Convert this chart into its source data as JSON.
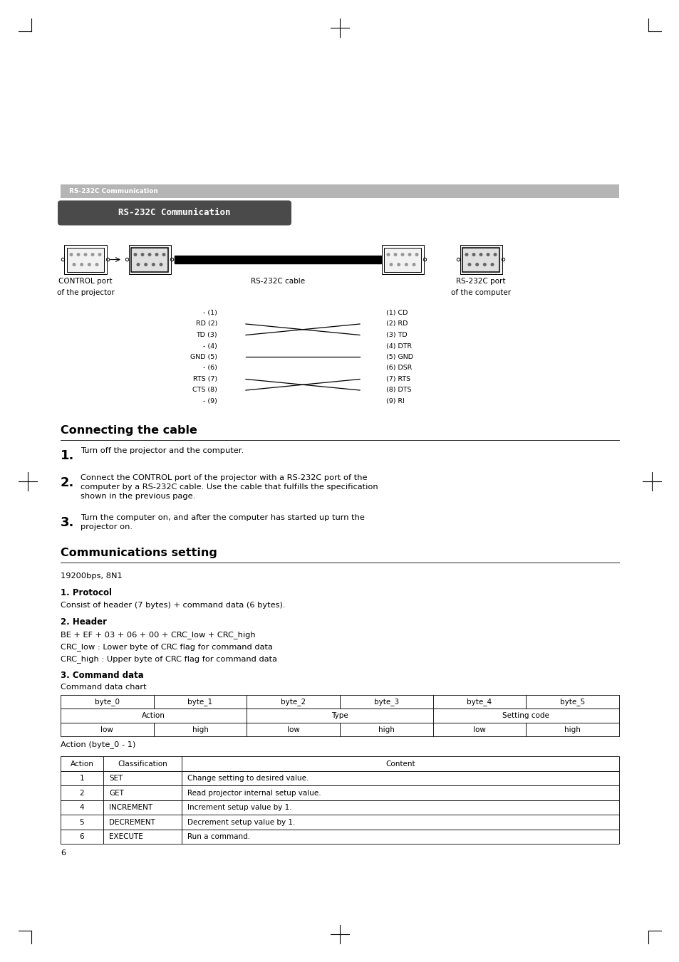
{
  "bg_color": "#ffffff",
  "page_width": 9.54,
  "page_height": 13.51,
  "header_bar_text": "RS-232C Communication",
  "title_box_text": "RS-232C Communication",
  "section1_title": "Connecting the cable",
  "section2_title": "Communications setting",
  "baud_rate": "19200bps, 8N1",
  "protocol_title": "1. Protocol",
  "protocol_text": "Consist of header (7 bytes) + command data (6 bytes).",
  "header_title": "2. Header",
  "header_text1": "BE + EF + 03 + 06 + 00 + CRC_low + CRC_high",
  "header_text2": "CRC_low : Lower byte of CRC flag for command data",
  "header_text3": "CRC_high : Upper byte of CRC flag for command data",
  "cmd_data_title": "3. Command data",
  "cmd_data_subtitle": "Command data chart",
  "action_table_label": "Action (byte_0 - 1)",
  "step1": "Turn off the projector and the computer.",
  "step2_line1": "Connect the CONTROL port of the projector with a RS-232C port of the",
  "step2_line2": "computer by a RS-232C cable. Use the cable that fulfills the specification",
  "step2_line3": "shown in the previous page.",
  "step3_line1": "Turn the computer on, and after the computer has started up turn the",
  "step3_line2": "projector on.",
  "page_number": "6",
  "cable_label": "RS-232C cable",
  "control_port_label1": "CONTROL port",
  "control_port_label2": "of the projector",
  "rs232c_port_label1": "RS-232C port",
  "rs232c_port_label2": "of the computer",
  "wiring_left": [
    "- (1)",
    "RD (2)",
    "TD (3)",
    "- (4)",
    "GND (5)",
    "- (6)",
    "RTS (7)",
    "CTS (8)",
    "- (9)"
  ],
  "wiring_right": [
    "(1) CD",
    "(2) RD",
    "(3) TD",
    "(4) DTR",
    "(5) GND",
    "(6) DSR",
    "(7) RTS",
    "(8) DTS",
    "(9) RI"
  ],
  "byte_table_headers": [
    "byte_0",
    "byte_1",
    "byte_2",
    "byte_3",
    "byte_4",
    "byte_5"
  ],
  "action_table_headers": [
    "Action",
    "Classification",
    "Content"
  ],
  "action_table_rows": [
    [
      "1",
      "SET",
      "Change setting to desired value."
    ],
    [
      "2",
      "GET",
      "Read projector internal setup value."
    ],
    [
      "4",
      "INCREMENT",
      "Increment setup value by 1."
    ],
    [
      "5",
      "DECREMENT",
      "Decrement setup value by 1."
    ],
    [
      "6",
      "EXECUTE",
      "Run a command."
    ]
  ]
}
